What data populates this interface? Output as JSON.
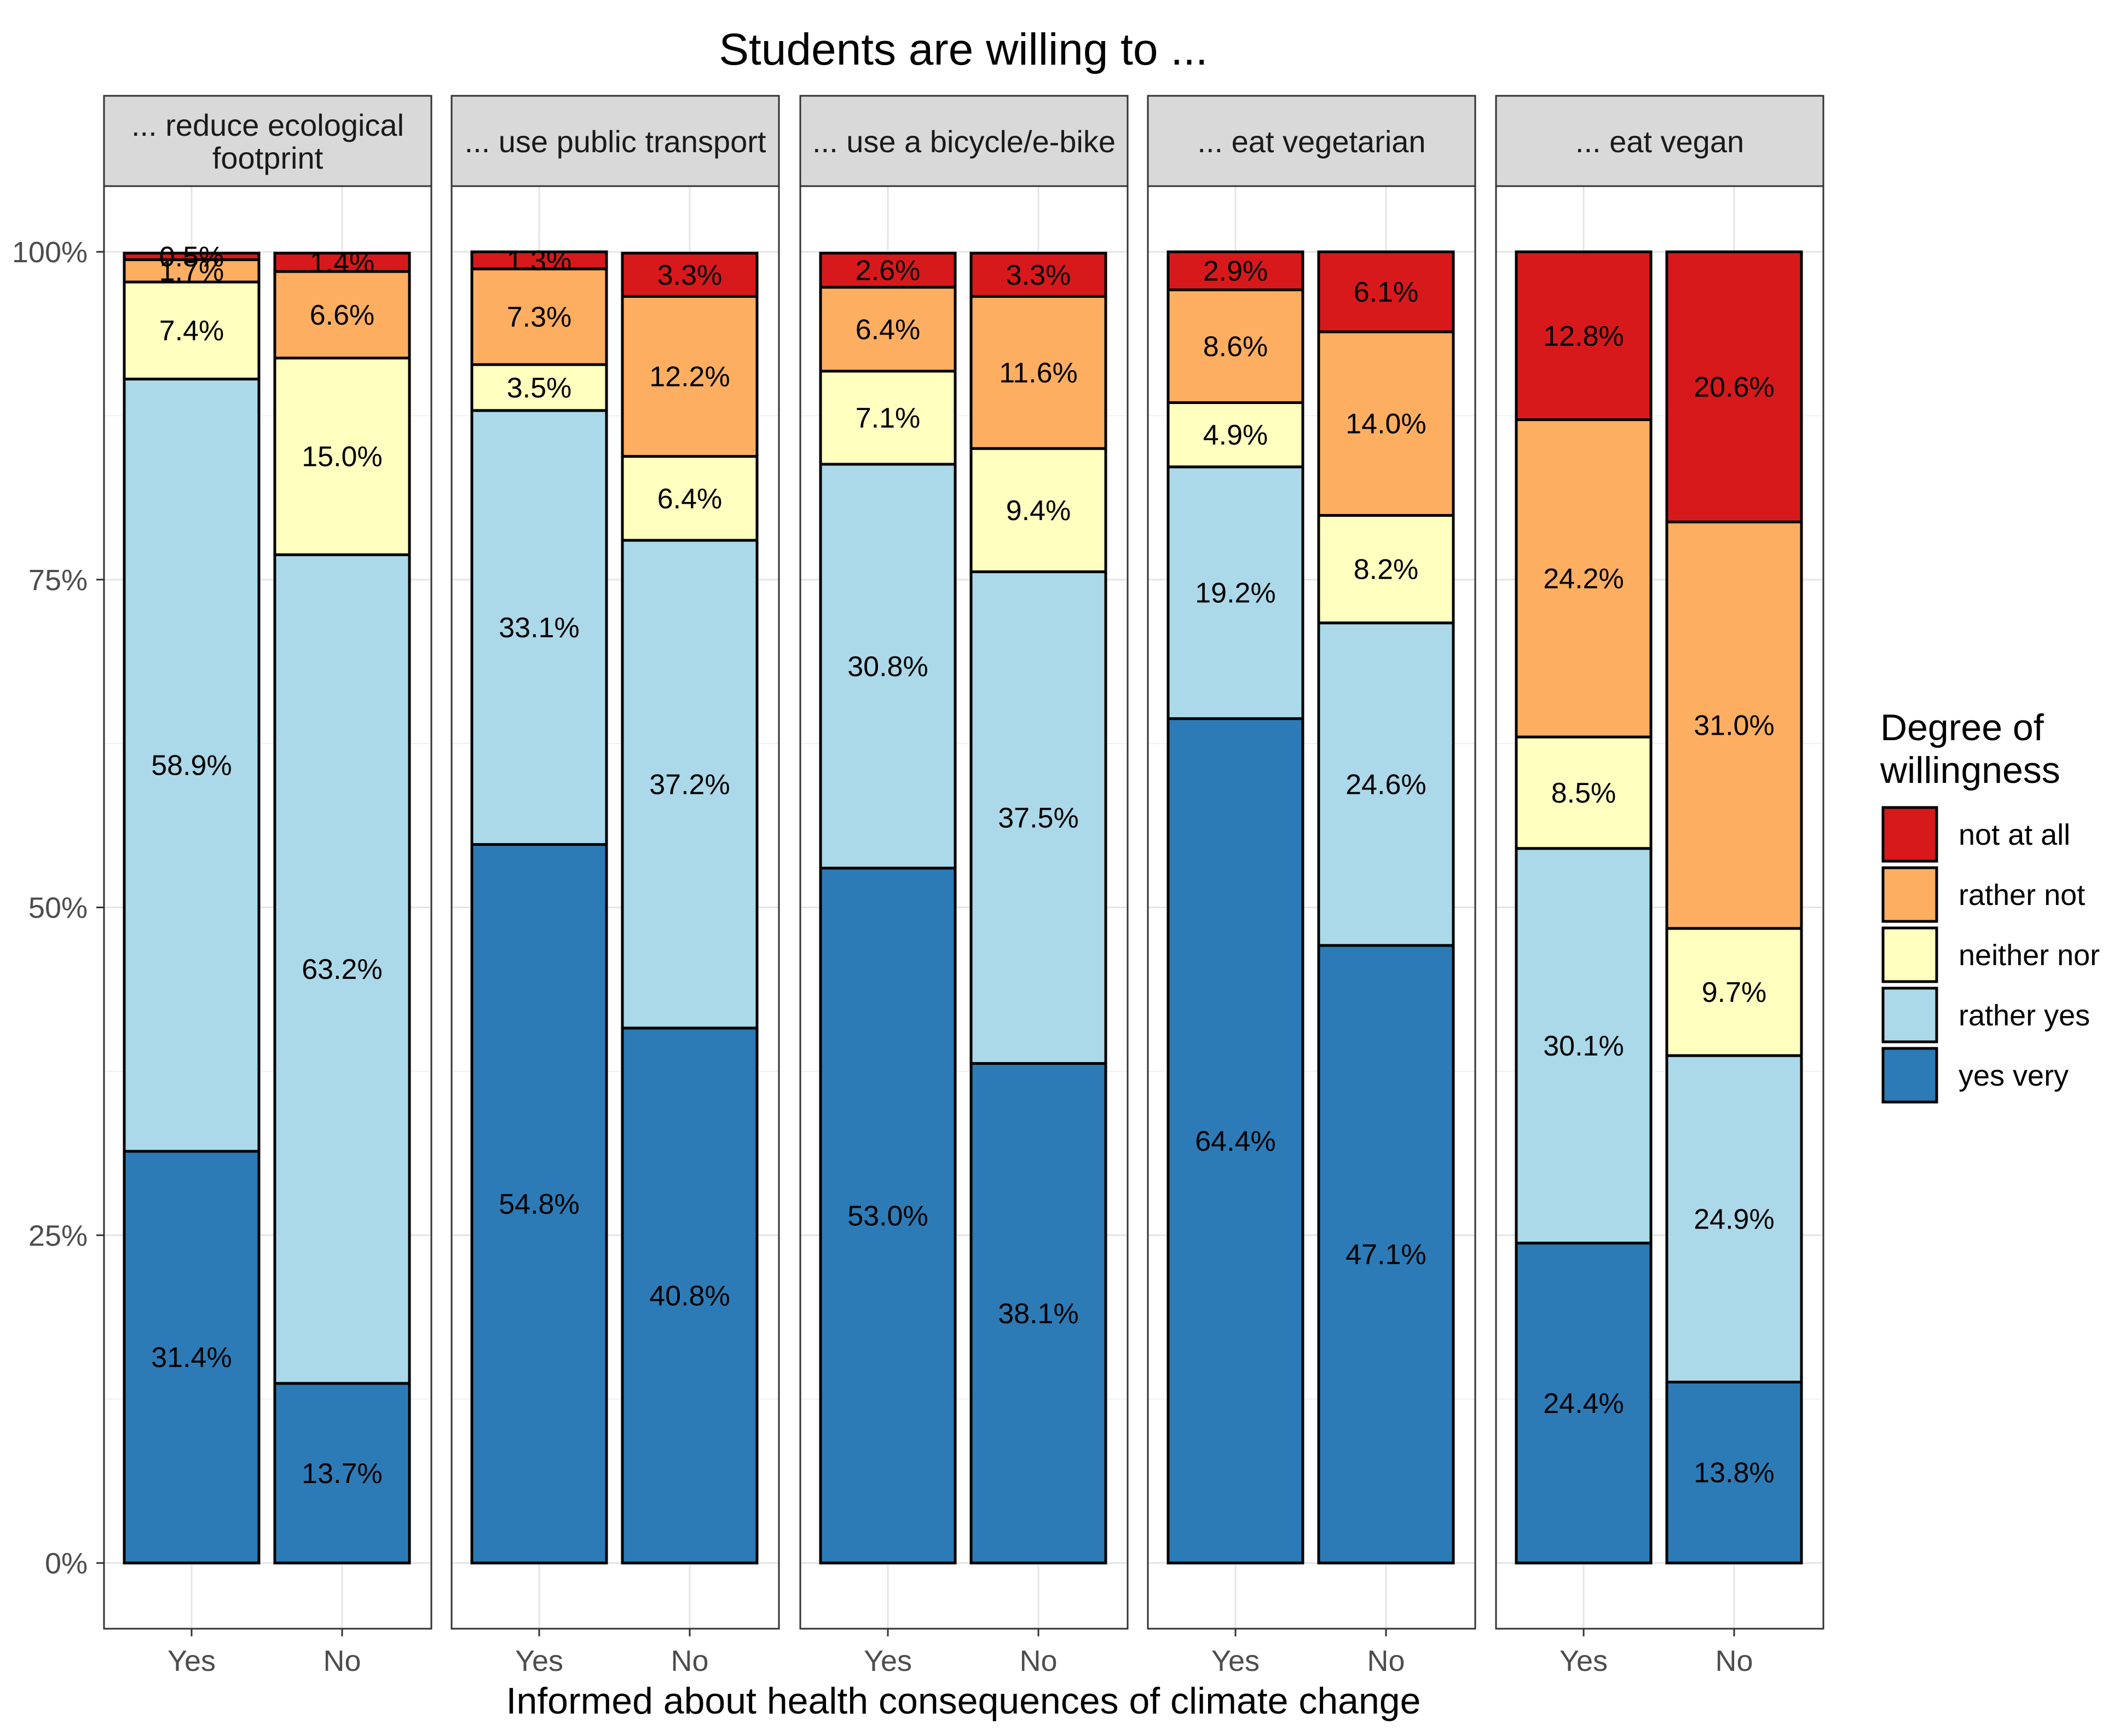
{
  "chart_data": {
    "type": "bar",
    "stacked": true,
    "percent": true,
    "title": "Students are willing to ...",
    "xlabel": "Informed about health consequences of climate change",
    "ylabel": "",
    "ylim": [
      0,
      100
    ],
    "y_ticks": [
      {
        "value": 0,
        "label": "0%"
      },
      {
        "value": 25,
        "label": "25%"
      },
      {
        "value": 50,
        "label": "50%"
      },
      {
        "value": 75,
        "label": "75%"
      },
      {
        "value": 100,
        "label": "100%"
      }
    ],
    "grid": true,
    "categories": [
      "Yes",
      "No"
    ],
    "legend": {
      "title_line1": "Degree of",
      "title_line2": "willingness",
      "position": "right"
    },
    "levels": [
      {
        "key": "not_at_all",
        "name": "not at all",
        "color": "#d7191c"
      },
      {
        "key": "rather_not",
        "name": "rather not",
        "color": "#fdae61"
      },
      {
        "key": "neither_nor",
        "name": "neither nor",
        "color": "#ffffbf"
      },
      {
        "key": "rather_yes",
        "name": "rather yes",
        "color": "#abd9e9"
      },
      {
        "key": "yes_very",
        "name": "yes very",
        "color": "#2c7bb6"
      }
    ],
    "stack_order_bottom_to_top": [
      "yes_very",
      "rather_yes",
      "neither_nor",
      "rather_not",
      "not_at_all"
    ],
    "facets": [
      {
        "title_lines": [
          "... reduce ecological",
          "footprint"
        ],
        "bars": [
          {
            "category": "Yes",
            "values": {
              "yes_very": 31.4,
              "rather_yes": 58.9,
              "neither_nor": 7.4,
              "rather_not": 1.7,
              "not_at_all": 0.5
            },
            "labels": {
              "yes_very": "31.4%",
              "rather_yes": "58.9%",
              "neither_nor": "7.4%",
              "rather_not": "1.7%",
              "not_at_all": "0.5%"
            }
          },
          {
            "category": "No",
            "values": {
              "yes_very": 13.7,
              "rather_yes": 63.2,
              "neither_nor": 15.0,
              "rather_not": 6.6,
              "not_at_all": 1.4
            },
            "labels": {
              "yes_very": "13.7%",
              "rather_yes": "63.2%",
              "neither_nor": "15.0%",
              "rather_not": "6.6%",
              "not_at_all": "1.4%"
            }
          }
        ]
      },
      {
        "title_lines": [
          "... use public transport"
        ],
        "bars": [
          {
            "category": "Yes",
            "values": {
              "yes_very": 54.8,
              "rather_yes": 33.1,
              "neither_nor": 3.5,
              "rather_not": 7.3,
              "not_at_all": 1.3
            },
            "labels": {
              "yes_very": "54.8%",
              "rather_yes": "33.1%",
              "neither_nor": "3.5%",
              "rather_not": "7.3%",
              "not_at_all": "1.3%"
            }
          },
          {
            "category": "No",
            "values": {
              "yes_very": 40.8,
              "rather_yes": 37.2,
              "neither_nor": 6.4,
              "rather_not": 12.2,
              "not_at_all": 3.3
            },
            "labels": {
              "yes_very": "40.8%",
              "rather_yes": "37.2%",
              "neither_nor": "6.4%",
              "rather_not": "12.2%",
              "not_at_all": "3.3%"
            }
          }
        ]
      },
      {
        "title_lines": [
          "... use a bicycle/e-bike"
        ],
        "bars": [
          {
            "category": "Yes",
            "values": {
              "yes_very": 53.0,
              "rather_yes": 30.8,
              "neither_nor": 7.1,
              "rather_not": 6.4,
              "not_at_all": 2.6
            },
            "labels": {
              "yes_very": "53.0%",
              "rather_yes": "30.8%",
              "neither_nor": "7.1%",
              "rather_not": "6.4%",
              "not_at_all": "2.6%"
            }
          },
          {
            "category": "No",
            "values": {
              "yes_very": 38.1,
              "rather_yes": 37.5,
              "neither_nor": 9.4,
              "rather_not": 11.6,
              "not_at_all": 3.3
            },
            "labels": {
              "yes_very": "38.1%",
              "rather_yes": "37.5%",
              "neither_nor": "9.4%",
              "rather_not": "11.6%",
              "not_at_all": "3.3%"
            }
          }
        ]
      },
      {
        "title_lines": [
          "... eat vegetarian"
        ],
        "bars": [
          {
            "category": "Yes",
            "values": {
              "yes_very": 64.4,
              "rather_yes": 19.2,
              "neither_nor": 4.9,
              "rather_not": 8.6,
              "not_at_all": 2.9
            },
            "labels": {
              "yes_very": "64.4%",
              "rather_yes": "19.2%",
              "neither_nor": "4.9%",
              "rather_not": "8.6%",
              "not_at_all": "2.9%"
            }
          },
          {
            "category": "No",
            "values": {
              "yes_very": 47.1,
              "rather_yes": 24.6,
              "neither_nor": 8.2,
              "rather_not": 14.0,
              "not_at_all": 6.1
            },
            "labels": {
              "yes_very": "47.1%",
              "rather_yes": "24.6%",
              "neither_nor": "8.2%",
              "rather_not": "14.0%",
              "not_at_all": "6.1%"
            }
          }
        ]
      },
      {
        "title_lines": [
          "... eat vegan"
        ],
        "bars": [
          {
            "category": "Yes",
            "values": {
              "yes_very": 24.4,
              "rather_yes": 30.1,
              "neither_nor": 8.5,
              "rather_not": 24.2,
              "not_at_all": 12.8
            },
            "labels": {
              "yes_very": "24.4%",
              "rather_yes": "30.1%",
              "neither_nor": "8.5%",
              "rather_not": "24.2%",
              "not_at_all": "12.8%"
            }
          },
          {
            "category": "No",
            "values": {
              "yes_very": 13.8,
              "rather_yes": 24.9,
              "neither_nor": 9.7,
              "rather_not": 31.0,
              "not_at_all": 20.6
            },
            "labels": {
              "yes_very": "13.8%",
              "rather_yes": "24.9%",
              "neither_nor": "9.7%",
              "rather_not": "31.0%",
              "not_at_all": "20.6%"
            }
          }
        ]
      }
    ]
  }
}
